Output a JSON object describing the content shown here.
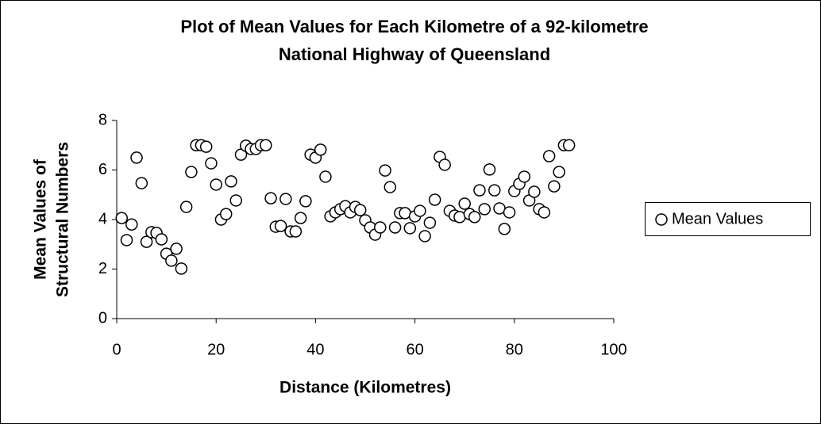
{
  "chart_data": {
    "type": "scatter",
    "title": [
      "Plot of Mean Values for Each Kilometre of a 92-kilometre",
      "National Highway of Queensland"
    ],
    "x_label": "Distance (Kilometres)",
    "y_label": [
      "Mean Values of",
      "Structural Numbers"
    ],
    "series": [
      {
        "name": "Mean Values",
        "color": "#000000",
        "x": [
          1,
          2,
          3,
          4,
          5,
          6,
          7,
          8,
          9,
          10,
          11,
          12,
          13,
          14,
          15,
          16,
          17,
          18,
          19,
          20,
          21,
          22,
          23,
          24,
          25,
          26,
          27,
          28,
          29,
          30,
          31,
          32,
          33,
          34,
          35,
          36,
          37,
          38,
          39,
          40,
          41,
          42,
          43,
          44,
          45,
          46,
          47,
          48,
          49,
          50,
          51,
          52,
          53,
          54,
          55,
          56,
          57,
          58,
          59,
          60,
          61,
          62,
          63,
          64,
          65,
          66,
          67,
          68,
          69,
          70,
          71,
          72,
          73,
          74,
          75,
          76,
          77,
          78,
          79,
          80,
          81,
          82,
          83,
          84,
          85,
          86,
          87,
          88,
          89,
          90,
          91
        ],
        "values": [
          4.06,
          3.17,
          3.8,
          6.5,
          5.47,
          3.1,
          3.49,
          3.46,
          3.2,
          2.62,
          2.34,
          2.82,
          2.02,
          4.51,
          5.92,
          7.0,
          7.0,
          6.94,
          6.27,
          5.41,
          4.0,
          4.22,
          5.54,
          4.77,
          6.62,
          6.98,
          6.85,
          6.85,
          7.0,
          7.0,
          4.86,
          3.71,
          3.74,
          4.83,
          3.52,
          3.52,
          4.06,
          4.74,
          6.62,
          6.5,
          6.82,
          5.73,
          4.13,
          4.29,
          4.42,
          4.54,
          4.29,
          4.51,
          4.38,
          3.97,
          3.68,
          3.39,
          3.68,
          5.98,
          5.31,
          3.68,
          4.26,
          4.26,
          3.65,
          4.13,
          4.35,
          3.33,
          3.87,
          4.8,
          6.53,
          6.21,
          4.35,
          4.16,
          4.1,
          4.64,
          4.22,
          4.1,
          5.18,
          4.42,
          6.02,
          5.18,
          4.45,
          3.62,
          4.29,
          5.15,
          5.44,
          5.73,
          4.77,
          5.12,
          4.42,
          4.29,
          6.56,
          5.34,
          5.92,
          7.0,
          7.0
        ]
      }
    ],
    "xlim": [
      0,
      100
    ],
    "xticks": [
      0,
      20,
      40,
      60,
      80,
      100
    ],
    "ylim": [
      0,
      8
    ],
    "yticks": [
      0,
      2,
      4,
      6,
      8
    ],
    "grid": false,
    "legend": "right"
  }
}
